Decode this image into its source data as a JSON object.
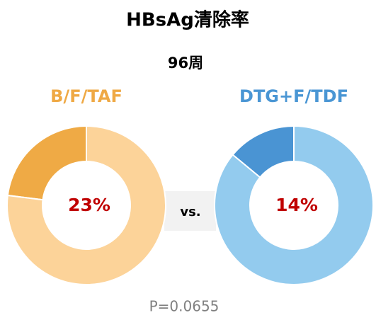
{
  "title": "HBsAg清除率",
  "subtitle": "96周",
  "separator": "vs.",
  "note": "P=0.0655",
  "chart_data": [
    {
      "type": "donut",
      "title": "B/F/TAF",
      "title_color": "#efa945",
      "categories": [
        null,
        null
      ],
      "values": [
        23,
        77
      ],
      "value_labels": [
        "23%",
        null
      ],
      "colors": [
        "#efaa45",
        "#fcd399"
      ],
      "label_color": "#c00000"
    },
    {
      "type": "donut",
      "title": "DTG+F/TDF",
      "title_color": "#4a96d4",
      "categories": [
        null,
        null
      ],
      "values": [
        14,
        86
      ],
      "value_labels": [
        "14%",
        null
      ],
      "colors": [
        "#4a94d3",
        "#93cbee"
      ],
      "label_color": "#c00000"
    }
  ]
}
